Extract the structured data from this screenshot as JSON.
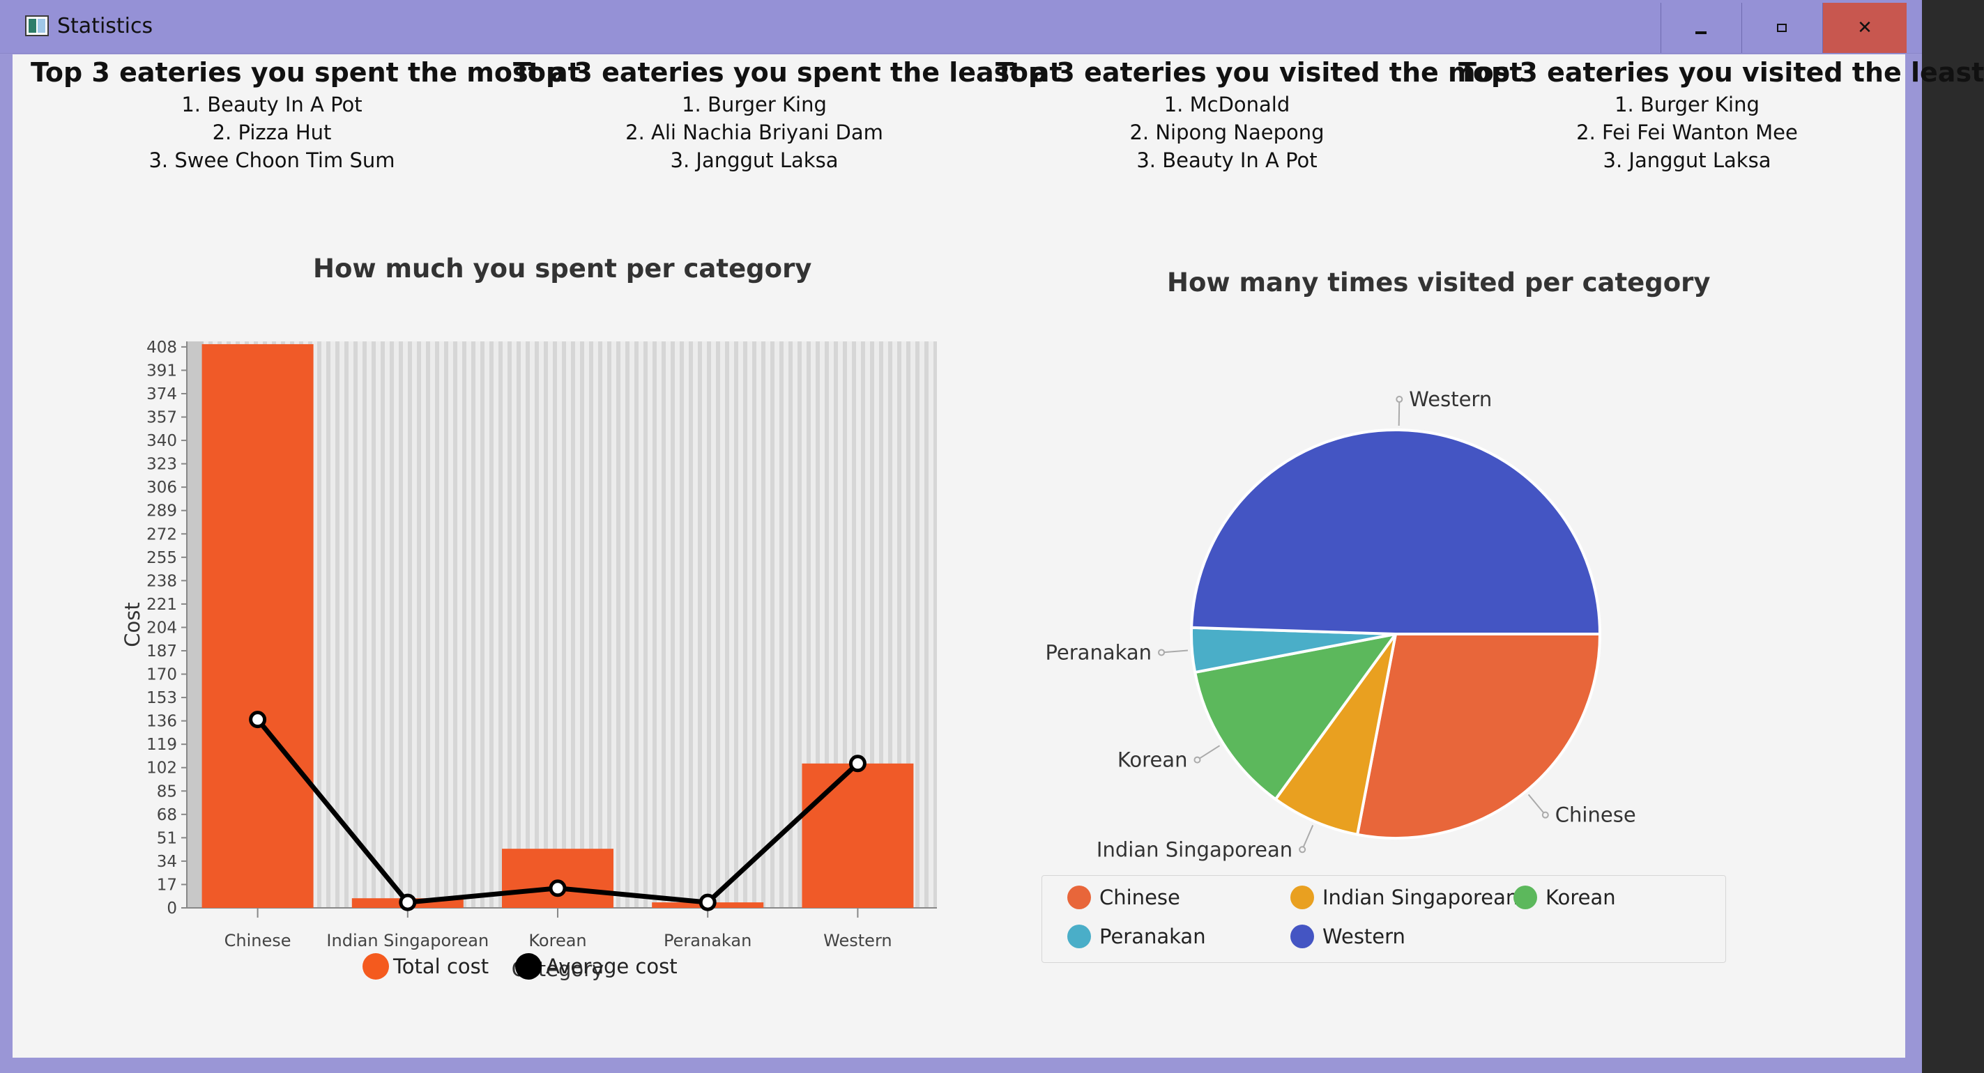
{
  "window": {
    "title": "Statistics"
  },
  "summary": [
    {
      "heading": "Top 3 eateries you spent the most at",
      "items": [
        "1. Beauty In A Pot",
        "2. Pizza Hut",
        "3. Swee Choon Tim Sum"
      ]
    },
    {
      "heading": "Top 3 eateries you spent the least at",
      "items": [
        "1. Burger King",
        "2. Ali Nachia Briyani Dam",
        "3. Janggut Laksa"
      ]
    },
    {
      "heading": "Top 3 eateries you visited the most",
      "items": [
        "1. McDonald",
        "2. Nipong Naepong",
        "3. Beauty In A Pot"
      ]
    },
    {
      "heading": "Top 3 eateries you visited the least",
      "items": [
        "1. Burger King",
        "2. Fei Fei Wanton Mee",
        "3. Janggut Laksa"
      ]
    }
  ],
  "chart_data": [
    {
      "type": "bar",
      "title": "How much you spent per category",
      "xlabel": "Category",
      "ylabel": "Cost",
      "categories": [
        "Chinese",
        "Indian Singaporean",
        "Korean",
        "Peranakan",
        "Western"
      ],
      "ylim": [
        0,
        412
      ],
      "yticks": [
        0,
        17,
        34,
        51,
        68,
        85,
        102,
        119,
        136,
        153,
        170,
        187,
        204,
        221,
        238,
        255,
        272,
        289,
        306,
        323,
        340,
        357,
        374,
        391,
        408
      ],
      "series": [
        {
          "name": "Total cost",
          "type": "bar",
          "color": "#f05a28",
          "values": [
            410,
            7,
            43,
            4,
            105
          ]
        },
        {
          "name": "Average cost",
          "type": "line",
          "color": "#000000",
          "values": [
            137,
            4,
            14.3,
            4,
            105
          ]
        }
      ],
      "legend": "bottom"
    },
    {
      "type": "pie",
      "title": "How many times visited per category",
      "slices": [
        {
          "name": "Chinese",
          "value": 28,
          "color": "#e8663a"
        },
        {
          "name": "Indian Singaporean",
          "value": 7,
          "color": "#e9a020"
        },
        {
          "name": "Korean",
          "value": 12,
          "color": "#5cb85c"
        },
        {
          "name": "Peranakan",
          "value": 3.5,
          "color": "#4aaec8"
        },
        {
          "name": "Western",
          "value": 49.5,
          "color": "#4455c3"
        }
      ],
      "legend": "bottom"
    }
  ],
  "pie_legend": [
    "Chinese",
    "Indian Singaporean",
    "Korean",
    "Peranakan",
    "Western"
  ],
  "bar_legend": [
    "Total cost",
    "Average cost"
  ]
}
